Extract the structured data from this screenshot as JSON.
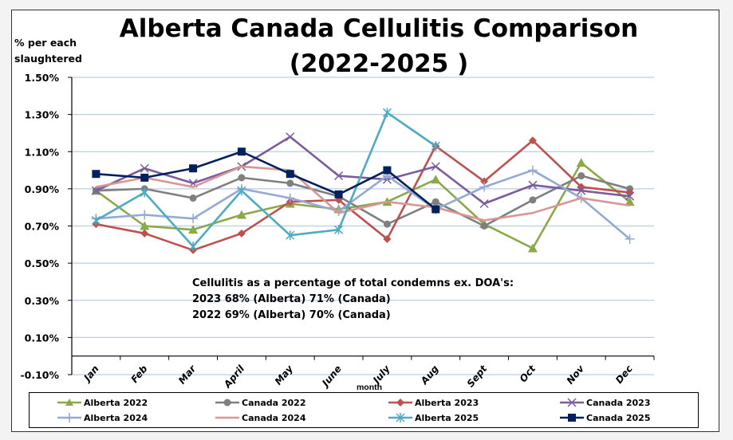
{
  "chart_data": {
    "type": "line",
    "title": "Alberta Canada Cellulitis Comparison (2022-2025 )",
    "title_lines": [
      "Alberta Canada Cellulitis Comparison",
      "(2022-2025 )"
    ],
    "xlabel": "month",
    "ylabel": "% per each slaughtered",
    "ylabel_lines": [
      "% per each",
      "slaughtered"
    ],
    "ylim": [
      -0.1,
      1.5
    ],
    "yticks": [
      -0.1,
      0.1,
      0.3,
      0.5,
      0.7,
      0.9,
      1.1,
      1.3,
      1.5
    ],
    "ytick_labels": [
      "-0.10%",
      "0.10%",
      "0.30%",
      "0.50%",
      "0.70%",
      "0.90%",
      "1.10%",
      "1.30%",
      "1.50%"
    ],
    "grid": true,
    "legend_position": "bottom",
    "categories": [
      "Jan",
      "Feb",
      "Mar",
      "April",
      "May",
      "June",
      "July",
      "Aug",
      "Sept",
      "Oct",
      "Nov",
      "Dec"
    ],
    "series": [
      {
        "name": "Alberta 2022",
        "color": "#8AAA48",
        "marker": "triangle",
        "values": [
          0.89,
          0.7,
          0.68,
          0.76,
          0.82,
          0.79,
          0.83,
          0.95,
          0.71,
          0.58,
          1.04,
          0.83
        ]
      },
      {
        "name": "Canada 2022",
        "color": "#7F7F7F",
        "marker": "circle",
        "values": [
          0.89,
          0.9,
          0.85,
          0.96,
          0.93,
          0.86,
          0.71,
          0.83,
          0.7,
          0.84,
          0.97,
          0.9
        ]
      },
      {
        "name": "Alberta 2023",
        "color": "#C0504D",
        "marker": "diamond",
        "values": [
          0.71,
          0.66,
          0.57,
          0.66,
          0.83,
          0.84,
          0.63,
          1.13,
          0.94,
          1.16,
          0.91,
          0.88
        ]
      },
      {
        "name": "Canada 2023",
        "color": "#7B5C9E",
        "marker": "x",
        "values": [
          0.89,
          1.01,
          0.93,
          1.02,
          1.18,
          0.97,
          0.95,
          1.02,
          0.82,
          0.92,
          0.89,
          0.86
        ]
      },
      {
        "name": "Alberta 2024",
        "color": "#92AAD4",
        "marker": "plus",
        "values": [
          0.74,
          0.76,
          0.74,
          0.9,
          0.85,
          0.78,
          0.97,
          0.79,
          0.91,
          1.0,
          0.85,
          0.63
        ]
      },
      {
        "name": "Canada 2024",
        "color": "#D99694",
        "marker": "none",
        "values": [
          0.91,
          0.96,
          0.91,
          1.02,
          1.0,
          0.77,
          0.83,
          0.8,
          0.73,
          0.77,
          0.85,
          0.81
        ]
      },
      {
        "name": "Alberta 2025",
        "color": "#4BACC6",
        "marker": "star",
        "values": [
          0.73,
          0.88,
          0.59,
          0.89,
          0.65,
          0.68,
          1.31,
          1.13
        ]
      },
      {
        "name": "Canada 2025",
        "color": "#002060",
        "marker": "square",
        "values": [
          0.98,
          0.96,
          1.01,
          1.1,
          0.98,
          0.87,
          1.0,
          0.79
        ]
      }
    ],
    "annotations": [
      "Cellulitis as a percentage of total condemns ex. DOA's:",
      "2023 68% (Alberta) 71% (Canada)",
      "2022 69% (Alberta) 70% (Canada)"
    ]
  }
}
